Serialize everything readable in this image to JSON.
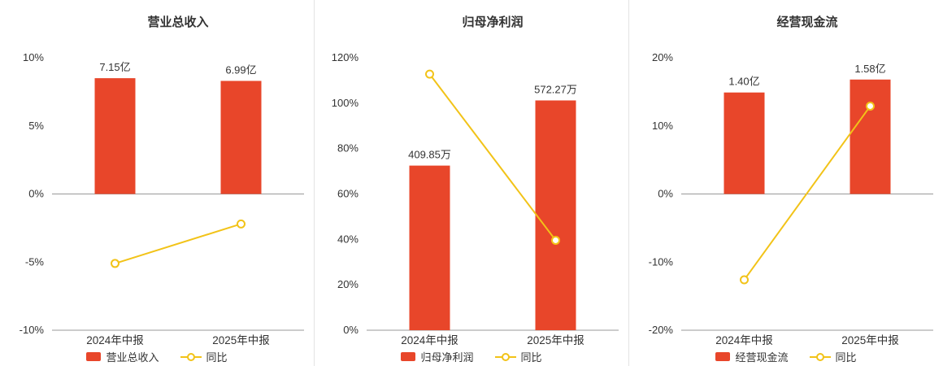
{
  "colors": {
    "bar": "#e8462a",
    "line": "#f2c318",
    "axis": "#999999",
    "tick_text": "#333333",
    "title_text": "#333333",
    "divider": "#e3e3e3",
    "marker_fill": "#ffffff",
    "background": "#ffffff"
  },
  "chart_data": [
    {
      "type": "bar",
      "title": "营业总收入",
      "categories": [
        "2024年中报",
        "2025年中报"
      ],
      "ylim": [
        -10,
        10
      ],
      "yticks": [
        -10,
        -5,
        0,
        5,
        10
      ],
      "ytick_labels": [
        "-10%",
        "-5%",
        "0%",
        "5%",
        "10%"
      ],
      "grid": "off",
      "legend_position": "bottom",
      "series": [
        {
          "name": "营业总收入",
          "type": "bar",
          "value_labels": [
            "7.15亿",
            "6.99亿"
          ],
          "plotted_pct": [
            8.5,
            8.3
          ]
        },
        {
          "name": "同比",
          "type": "line",
          "values_pct": [
            -5.1,
            -2.2
          ]
        }
      ]
    },
    {
      "type": "bar",
      "title": "归母净利润",
      "categories": [
        "2024年中报",
        "2025年中报"
      ],
      "ylim": [
        0,
        120
      ],
      "yticks": [
        0,
        20,
        40,
        60,
        80,
        100,
        120
      ],
      "ytick_labels": [
        "0%",
        "20%",
        "40%",
        "60%",
        "80%",
        "100%",
        "120%"
      ],
      "grid": "off",
      "legend_position": "bottom",
      "series": [
        {
          "name": "归母净利润",
          "type": "bar",
          "value_labels": [
            "409.85万",
            "572.27万"
          ],
          "plotted_pct": [
            72.5,
            101.2
          ]
        },
        {
          "name": "同比",
          "type": "line",
          "values_pct": [
            112.8,
            39.6
          ]
        }
      ]
    },
    {
      "type": "bar",
      "title": "经营现金流",
      "categories": [
        "2024年中报",
        "2025年中报"
      ],
      "ylim": [
        -20,
        20
      ],
      "yticks": [
        -20,
        -10,
        0,
        10,
        20
      ],
      "ytick_labels": [
        "-20%",
        "-10%",
        "0%",
        "10%",
        "20%"
      ],
      "grid": "off",
      "legend_position": "bottom",
      "series": [
        {
          "name": "经营现金流",
          "type": "bar",
          "value_labels": [
            "1.40亿",
            "1.58亿"
          ],
          "plotted_pct": [
            14.9,
            16.8
          ]
        },
        {
          "name": "同比",
          "type": "line",
          "values_pct": [
            -12.6,
            12.9
          ]
        }
      ]
    }
  ]
}
